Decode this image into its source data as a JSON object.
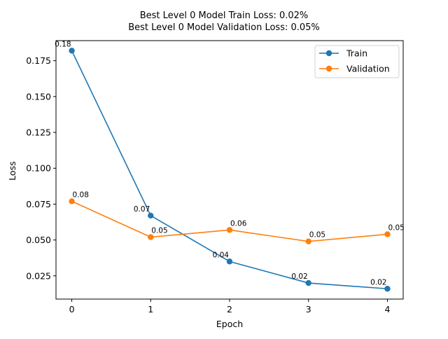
{
  "chart_data": {
    "type": "line",
    "title_lines": [
      "Best Level 0 Model Train Loss: 0.02%",
      "Best Level 0 Model Validation Loss: 0.05%"
    ],
    "xlabel": "Epoch",
    "ylabel": "Loss",
    "x": [
      0,
      1,
      2,
      3,
      4
    ],
    "xlim": [
      -0.2,
      4.2
    ],
    "ylim": [
      0.0088,
      0.189
    ],
    "xticks": [
      0,
      1,
      2,
      3,
      4
    ],
    "yticks": [
      0.025,
      0.05,
      0.075,
      0.1,
      0.125,
      0.15,
      0.175
    ],
    "ytick_labels": [
      "0.025",
      "0.050",
      "0.075",
      "0.100",
      "0.125",
      "0.150",
      "0.175"
    ],
    "grid": false,
    "legend_position": "top-right",
    "series": [
      {
        "name": "Train",
        "color": "#1f77b4",
        "marker": "circle",
        "values": [
          0.182,
          0.067,
          0.035,
          0.02,
          0.016
        ],
        "labels": [
          "0.18",
          "0.07",
          "0.04",
          "0.02",
          "0.02"
        ],
        "label_side": "left"
      },
      {
        "name": "Validation",
        "color": "#ff7f0e",
        "marker": "circle",
        "values": [
          0.077,
          0.052,
          0.057,
          0.049,
          0.054
        ],
        "labels": [
          "0.08",
          "0.05",
          "0.06",
          "0.05",
          "0.05"
        ],
        "label_side": "right"
      }
    ]
  }
}
